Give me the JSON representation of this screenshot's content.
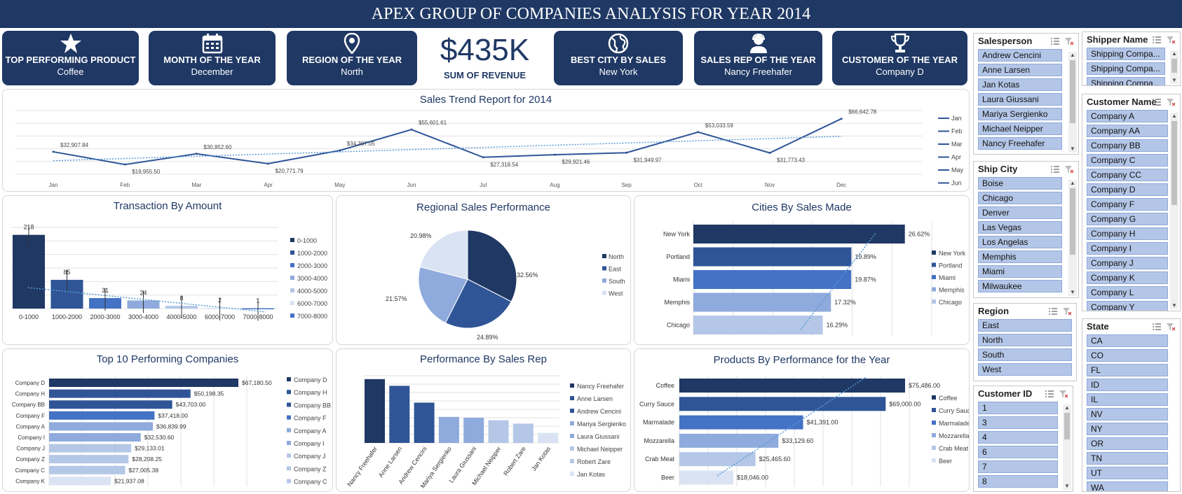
{
  "title": "APEX GROUP OF COMPANIES ANALYSIS FOR YEAR 2014",
  "colors": {
    "navy": "#1f3864",
    "blue": "#2f5597",
    "mid": "#4472c4",
    "light1": "#8faadc",
    "light2": "#b4c7e7",
    "light3": "#dae3f3",
    "trend": "#5b9bd5"
  },
  "kpis": [
    {
      "label": "TOP PERFORMING PRODUCT",
      "value": "Coffee",
      "icon": "star-icon"
    },
    {
      "label": "MONTH OF THE YEAR",
      "value": "December",
      "icon": "calendar-icon"
    },
    {
      "label": "REGION OF THE YEAR",
      "value": "North",
      "icon": "map-pin-icon"
    },
    {
      "label": "BEST CITY BY SALES",
      "value": "New York",
      "icon": "globe-icon"
    },
    {
      "label": "SALES REP OF THE YEAR",
      "value": "Nancy Freehafer",
      "icon": "headset-person-icon"
    },
    {
      "label": "CUSTOMER OF THE YEAR",
      "value": "Company D",
      "icon": "trophy-icon"
    }
  ],
  "revenue": {
    "value": "$435K",
    "label": "SUM OF REVENUE"
  },
  "chart_data": [
    {
      "id": "trend",
      "type": "line",
      "title": "Sales Trend Report for 2014",
      "categories": [
        "Jan",
        "Feb",
        "Mar",
        "Apr",
        "May",
        "Jun",
        "Jul",
        "Aug",
        "Sep",
        "Oct",
        "Nov",
        "Dec"
      ],
      "values": [
        32907.84,
        19955.5,
        30852.6,
        20771.79,
        34307.05,
        55601.61,
        27318.54,
        29921.46,
        31949.97,
        53033.59,
        31773.43,
        66642.78
      ],
      "labels": [
        "$32,907.84",
        "$19,955.50",
        "$30,852.60",
        "$20,771.79",
        "$34,307.05",
        "$55,601.61",
        "$27,318.54",
        "$29,921.46",
        "$31,949.97",
        "$53,033.59",
        "$31,773.43",
        "$66,642.78"
      ],
      "legend": [
        "Jan",
        "Feb",
        "Mar",
        "Apr",
        "May",
        "Jun"
      ],
      "legend_position": "right",
      "trendline": "linear",
      "grid": true
    },
    {
      "id": "amount",
      "type": "bar",
      "title": "Transaction By Amount",
      "categories": [
        "0-1000",
        "1000-2000",
        "2000-3000",
        "3000-4000",
        "4000-5000",
        "6000-7000",
        "7000-8000"
      ],
      "values": [
        218,
        85,
        31,
        24,
        8,
        2,
        1
      ],
      "legend": [
        "0-1000",
        "1000-2000",
        "2000-3000",
        "3000-4000",
        "4000-5000",
        "6000-7000",
        "7000-8000"
      ],
      "legend_position": "right",
      "trendline": "linear",
      "error_bars": true,
      "grid": true
    },
    {
      "id": "region",
      "type": "pie",
      "title": "Regional Sales Performance",
      "categories": [
        "North",
        "East",
        "South",
        "West"
      ],
      "values": [
        32.56,
        24.89,
        21.57,
        20.98
      ],
      "labels": [
        "32.56%",
        "24.89%",
        "21.57%",
        "20.98%"
      ],
      "legend_position": "right"
    },
    {
      "id": "cities",
      "type": "bar",
      "orientation": "horizontal",
      "title": "Cities By Sales Made",
      "categories": [
        "New York",
        "Portland",
        "Miami",
        "Memphis",
        "Chicago"
      ],
      "values": [
        26.62,
        19.89,
        19.87,
        17.32,
        16.29
      ],
      "labels": [
        "26.62%",
        "19.89%",
        "19.87%",
        "17.32%",
        "16.29%"
      ],
      "legend": [
        "New York",
        "Portland",
        "Miami",
        "Memphis",
        "Chicago"
      ],
      "legend_position": "right",
      "trendline": "linear",
      "grid": true
    },
    {
      "id": "companies",
      "type": "bar",
      "orientation": "horizontal",
      "title": "Top 10 Performing Companies",
      "categories": [
        "Company D",
        "Company H",
        "Company BB",
        "Company F",
        "Company A",
        "Company I",
        "Company J",
        "Company Z",
        "Company C",
        "Company K"
      ],
      "values": [
        67180.5,
        50198.35,
        43703.0,
        37418.0,
        36839.99,
        32530.6,
        29133.01,
        28208.25,
        27005.38,
        21937.08
      ],
      "labels": [
        "$67,180.50",
        "$50,198.35",
        "$43,703.00",
        "$37,418.00",
        "$36,839.99",
        "$32,530.60",
        "$29,133.01",
        "$28,208.25",
        "$27,005.38",
        "$21,937.08"
      ],
      "legend": [
        "Company D",
        "Company H",
        "Company BB",
        "Company F",
        "Company A",
        "Company I",
        "Company J",
        "Company Z",
        "Company C"
      ],
      "legend_position": "right",
      "grid": true
    },
    {
      "id": "reps",
      "type": "bar",
      "title": "Performance By Sales Rep",
      "categories": [
        "Nancy Freehafer",
        "Anne Larsen",
        "Andrew Cencini",
        "Mariya Sergienko",
        "Laura Giussani",
        "Michael Neipper",
        "Robert Zare",
        "Jan Kotas"
      ],
      "values": [
        76,
        68,
        48,
        31,
        30,
        27,
        23,
        12
      ],
      "legend": [
        "Nancy Freehafer",
        "Anne Larsen",
        "Andrew Cencini",
        "Mariya Sergienko",
        "Laura Giussani",
        "Michael Neipper",
        "Robert Zare",
        "Jan Kotas"
      ],
      "legend_position": "right",
      "grid": true
    },
    {
      "id": "products",
      "type": "bar",
      "orientation": "horizontal",
      "title": "Products By Performance for the Year",
      "categories": [
        "Coffee",
        "Curry Sauce",
        "Marmalade",
        "Mozzarella",
        "Crab Meat",
        "Beer"
      ],
      "values": [
        75486.0,
        69000.0,
        41391.0,
        33129.6,
        25465.6,
        18046.0
      ],
      "labels": [
        "$75,486.00",
        "$69,000.00",
        "$41,391.00",
        "$33,129.60",
        "$25,465.60",
        "$18,046.00"
      ],
      "legend": [
        "Coffee",
        "Curry Sauce",
        "Marmalade",
        "Mozzarella",
        "Crab Meat",
        "Beer"
      ],
      "legend_position": "right",
      "trendline": "linear",
      "grid": true
    }
  ],
  "slicers": {
    "salesperson": {
      "title": "Salesperson",
      "items": [
        "Andrew Cencini",
        "Anne Larsen",
        "Jan Kotas",
        "Laura Giussani",
        "Mariya Sergienko",
        "Michael Neipper",
        "Nancy Freehafer"
      ]
    },
    "ship_city": {
      "title": "Ship City",
      "items": [
        "Boise",
        "Chicago",
        "Denver",
        "Las Vegas",
        "Los Angelas",
        "Memphis",
        "Miami",
        "Milwaukee"
      ]
    },
    "region": {
      "title": "Region",
      "items": [
        "East",
        "North",
        "South",
        "West"
      ]
    },
    "customer_id": {
      "title": "Customer ID",
      "items": [
        "1",
        "3",
        "4",
        "6",
        "7",
        "8"
      ]
    },
    "shipper": {
      "title": "Shipper Name",
      "items": [
        "Shipping Compa...",
        "Shipping Compa...",
        "Shipping Compa..."
      ]
    },
    "customer_name": {
      "title": "Customer Name",
      "items": [
        "Company A",
        "Company AA",
        "Company BB",
        "Company C",
        "Company CC",
        "Company D",
        "Company F",
        "Company G",
        "Company H",
        "Company I",
        "Company J",
        "Company K",
        "Company L",
        "Company Y"
      ]
    },
    "state": {
      "title": "State",
      "items": [
        "CA",
        "CO",
        "FL",
        "ID",
        "IL",
        "NV",
        "NY",
        "OR",
        "TN",
        "UT",
        "WA"
      ]
    }
  }
}
